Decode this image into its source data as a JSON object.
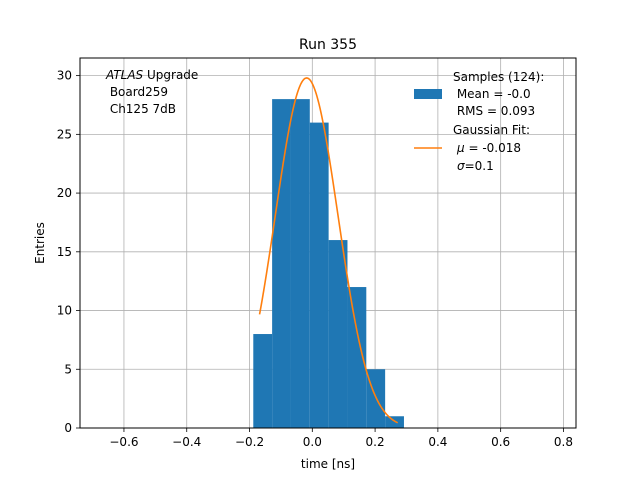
{
  "chart_data": {
    "type": "histogram",
    "title": "Run 355",
    "xlabel": "time [ns]",
    "ylabel": "Entries",
    "xlim": [
      -0.74,
      0.84
    ],
    "ylim": [
      0,
      31.5
    ],
    "xticks": [
      -0.6,
      -0.4,
      -0.2,
      0.0,
      0.2,
      0.4,
      0.6,
      0.8
    ],
    "xtick_labels": [
      "−0.6",
      "−0.4",
      "−0.2",
      "0.0",
      "0.2",
      "0.4",
      "0.6",
      "0.8"
    ],
    "yticks": [
      0,
      5,
      10,
      15,
      20,
      25,
      30
    ],
    "ytick_labels": [
      "0",
      "5",
      "10",
      "15",
      "20",
      "25",
      "30"
    ],
    "grid": true,
    "bins": [
      {
        "x0": -0.188,
        "x1": -0.128,
        "count": 8
      },
      {
        "x0": -0.128,
        "x1": -0.068,
        "count": 28
      },
      {
        "x0": -0.068,
        "x1": -0.008,
        "count": 28
      },
      {
        "x0": -0.008,
        "x1": 0.052,
        "count": 26
      },
      {
        "x0": 0.052,
        "x1": 0.112,
        "count": 16
      },
      {
        "x0": 0.112,
        "x1": 0.172,
        "count": 12
      },
      {
        "x0": 0.172,
        "x1": 0.232,
        "count": 5
      },
      {
        "x0": 0.232,
        "x1": 0.292,
        "count": 1
      }
    ],
    "fit": {
      "amplitude": 29.8,
      "mu": -0.018,
      "sigma": 0.1,
      "x_range": [
        -0.168,
        0.272
      ]
    },
    "bar_color": "#1f77b4",
    "fit_color": "#ff7f0e",
    "grid_color": "#b0b0b0",
    "annotation": {
      "italic": "ATLAS",
      "line1_rest": " Upgrade",
      "line2": " Board259",
      "line3": " Ch125 7dB"
    },
    "legend": {
      "position": "top-right",
      "samples_line1": "Samples (124):",
      "samples_line2": " Mean = -0.0",
      "samples_line3": " RMS = 0.093",
      "fit_line1": "Gaussian Fit:",
      "fit_line2_sym": "μ",
      "fit_line2_val": " = -0.018",
      "fit_line3_sym": "σ",
      "fit_line3_val": "=0.1"
    }
  }
}
